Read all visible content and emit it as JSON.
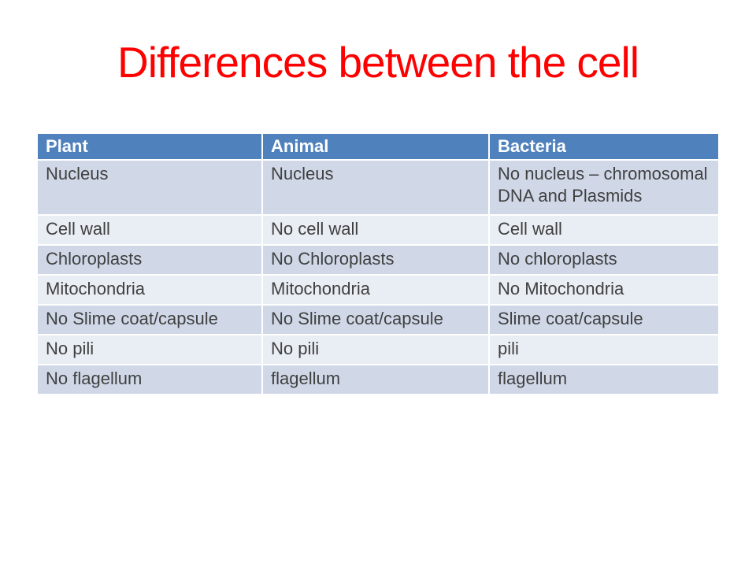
{
  "theme": {
    "slide_bg": "#ffffff",
    "title_color": "#ff0000",
    "header_bg": "#4f81bd",
    "header_text": "#ffffff",
    "band_dark": "#d0d8e8",
    "band_light": "#e9edf4",
    "border_color": "#ffffff",
    "body_text": "#404040"
  },
  "slide": {
    "title": "Differences between the cell"
  },
  "table": {
    "columns": [
      "Plant",
      "Animal",
      "Bacteria"
    ],
    "rows": [
      {
        "cells": [
          "Nucleus",
          "Nucleus",
          "No nucleus – chromosomal DNA and Plasmids"
        ]
      },
      {
        "cells": [
          "Cell wall",
          "No cell wall",
          "Cell wall"
        ]
      },
      {
        "cells": [
          "Chloroplasts",
          "No Chloroplasts",
          "No chloroplasts"
        ]
      },
      {
        "cells": [
          "Mitochondria",
          "Mitochondria",
          "No Mitochondria"
        ]
      },
      {
        "cells": [
          "No Slime coat/capsule",
          "No Slime coat/capsule",
          "Slime coat/capsule"
        ]
      },
      {
        "cells": [
          "No pili",
          "No pili",
          "pili"
        ]
      },
      {
        "cells": [
          "No flagellum",
          "flagellum",
          "flagellum"
        ]
      }
    ]
  }
}
